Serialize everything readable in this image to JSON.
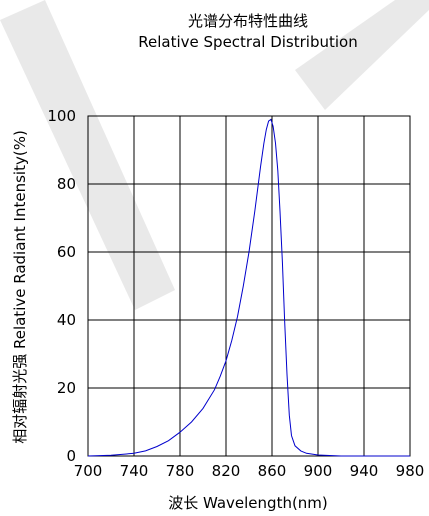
{
  "chart_data": {
    "type": "line",
    "title": "光谱分布特性曲线",
    "subtitle": "Relative Spectral Distribution",
    "xlabel": "波长  Wavelength(nm)",
    "ylabel": "相对辐射光强  Relative  Radiant Intensity(%)",
    "xlim": [
      700,
      980
    ],
    "ylim": [
      0,
      100
    ],
    "xticks": [
      700,
      740,
      780,
      820,
      860,
      900,
      940,
      980
    ],
    "yticks": [
      0,
      20,
      40,
      60,
      80,
      100
    ],
    "grid": true,
    "series_color": "#0000cc",
    "series": [
      {
        "x": [
          700,
          720,
          740,
          750,
          760,
          770,
          780,
          790,
          800,
          810,
          815,
          820,
          825,
          830,
          835,
          840,
          845,
          850,
          853,
          855,
          857,
          859,
          861,
          863,
          865,
          867,
          869,
          871,
          873,
          875,
          877,
          880,
          885,
          890,
          900,
          920,
          980
        ],
        "y": [
          0,
          0.2,
          0.8,
          1.5,
          2.8,
          4.5,
          7,
          10,
          14,
          19.5,
          23.5,
          28,
          34,
          41,
          50,
          60,
          72,
          85,
          92,
          96,
          98.5,
          99,
          97,
          92,
          84,
          72,
          57,
          40,
          24,
          12,
          6,
          3,
          1.5,
          0.8,
          0.3,
          0,
          0
        ]
      }
    ]
  }
}
